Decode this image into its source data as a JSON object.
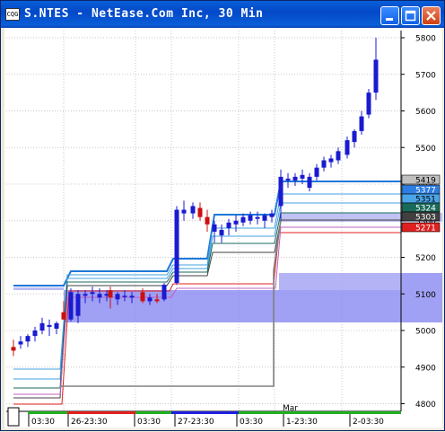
{
  "window": {
    "title": "S.NTES - NetEase.Com Inc, 30 Min",
    "icon_label": "CQG",
    "buttons": {
      "minimize": "minimize-icon",
      "maximize": "maximize-icon",
      "close": "close-icon"
    }
  },
  "colors": {
    "up_candle": "#1a1ad0",
    "down_candle": "#cc1010",
    "band": "#7878f0",
    "top_line": "#1e78d8",
    "gray_line": "#808080"
  },
  "chart_data": {
    "type": "candlestick",
    "yaxis": {
      "ticks": [
        "5800",
        "5700",
        "5600",
        "5500",
        "5400",
        "5300",
        "5200",
        "5100",
        "5000",
        "4900",
        "4800"
      ]
    },
    "price_labels": [
      {
        "text": "5419",
        "bg": "#c0c0c0",
        "fg": "#000000"
      },
      {
        "text": "5377",
        "bg": "#2e7de0",
        "fg": "#ffffff"
      },
      {
        "text": "5351",
        "bg": "#4aa4e8",
        "fg": "#000000"
      },
      {
        "text": "5324",
        "bg": "#1a6a5a",
        "fg": "#ffffff"
      },
      {
        "text": "5303",
        "bg": "#404040",
        "fg": "#ffffff"
      },
      {
        "text": "5271",
        "bg": "#e02020",
        "fg": "#ffffff"
      }
    ],
    "xaxis": {
      "ticks": [
        "03:30",
        "26-23:30",
        "03:30",
        "27-23:30",
        "03:30",
        "1-23:30",
        "2-03:30"
      ],
      "month_label": "Mar"
    }
  }
}
